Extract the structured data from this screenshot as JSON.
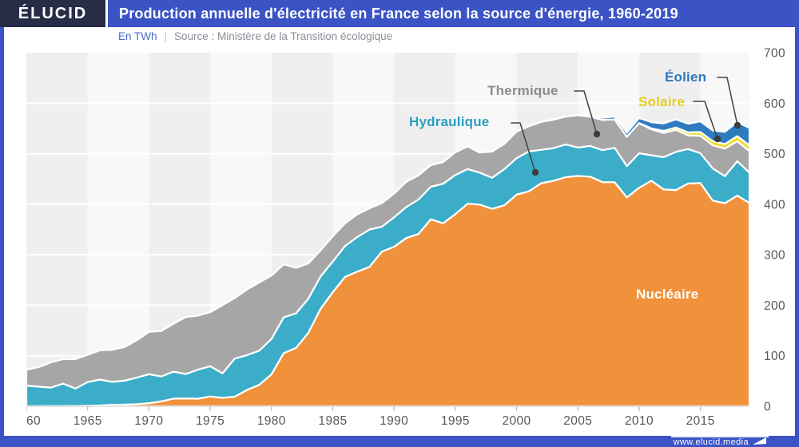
{
  "header": {
    "logo": "ÉLUCID",
    "title": "Production annuelle d'électricité en France selon la source d'énergie, 1960-2019"
  },
  "subtitle": {
    "unit": "En TWh",
    "separator": "|",
    "source": "Source : Ministère de la Transition écologique"
  },
  "footer": {
    "url": "www.elucid.media"
  },
  "colors": {
    "frame_blue": "#3B54C5",
    "logo_navy": "#272C47",
    "stripe_dark": "#EFEFF0",
    "stripe_light": "#F8F8F9",
    "gridline": "#FFFFFF",
    "axis_line": "#D2D3D5",
    "tick": "#B9BABC",
    "axis_text": "#56585D",
    "leader_line": "#474747",
    "leader_dot": "#3C3C3C"
  },
  "chart_data": {
    "type": "area",
    "stacked": true,
    "title": "Production annuelle d'électricité en France selon la source d'énergie, 1960-2019",
    "unit": "TWh",
    "ylim": [
      0,
      700
    ],
    "yticks": [
      0,
      100,
      200,
      300,
      400,
      500,
      600,
      700
    ],
    "xticks": [
      1960,
      1965,
      1970,
      1975,
      1980,
      1985,
      1990,
      1995,
      2000,
      2005,
      2010,
      2015
    ],
    "grid": true,
    "legend_position": "inline-labels",
    "years": [
      1960,
      1961,
      1962,
      1963,
      1964,
      1965,
      1966,
      1967,
      1968,
      1969,
      1970,
      1971,
      1972,
      1973,
      1974,
      1975,
      1976,
      1977,
      1978,
      1979,
      1980,
      1981,
      1982,
      1983,
      1984,
      1985,
      1986,
      1987,
      1988,
      1989,
      1990,
      1991,
      1992,
      1993,
      1994,
      1995,
      1996,
      1997,
      1998,
      1999,
      2000,
      2001,
      2002,
      2003,
      2004,
      2005,
      2006,
      2007,
      2008,
      2009,
      2010,
      2011,
      2012,
      2013,
      2014,
      2015,
      2016,
      2017,
      2018,
      2019
    ],
    "series": [
      {
        "key": "nucleaire",
        "name": "Nucléaire",
        "color": "#F0913C",
        "label_color": "#FFFFFF",
        "values": [
          0.1,
          0.2,
          0.4,
          0.5,
          0.7,
          1.0,
          1.6,
          2.8,
          3.3,
          4.3,
          6.1,
          9.8,
          15.2,
          15.6,
          15.0,
          19.4,
          16.8,
          19.0,
          32.4,
          42.4,
          63.4,
          105.2,
          115.5,
          145.2,
          192.7,
          226.0,
          256.2,
          266.5,
          276.0,
          306.1,
          315.9,
          333.1,
          341.1,
          370.2,
          362.4,
          380.5,
          401.1,
          399.3,
          390.9,
          397.8,
          419.1,
          425.6,
          441.7,
          446.2,
          453.6,
          456.0,
          454.6,
          443.9,
          443.6,
          413.6,
          432.6,
          446.6,
          429.4,
          428.1,
          441.1,
          442.0,
          407.2,
          402.0,
          417.0,
          402.5
        ]
      },
      {
        "key": "hydraulique",
        "name": "Hydraulique",
        "color": "#3BADC9",
        "label_color": "#2B9FBE",
        "values": [
          40.9,
          38.6,
          36.5,
          44.3,
          34.5,
          46.9,
          51.4,
          45.5,
          47.5,
          52.5,
          57.4,
          49.3,
          53.4,
          48.2,
          57.6,
          60.0,
          48.5,
          75.5,
          68.9,
          67.8,
          69.9,
          70.9,
          68.6,
          67.6,
          64.0,
          60.7,
          60.9,
          68.7,
          74.0,
          49.2,
          58.3,
          61.4,
          68.3,
          64.3,
          78.2,
          77.4,
          68.5,
          63.2,
          61.5,
          71.8,
          72.0,
          79.0,
          66.0,
          64.8,
          64.9,
          56.3,
          60.9,
          63.2,
          68.0,
          61.9,
          68.3,
          50.3,
          63.8,
          75.7,
          68.2,
          59.1,
          63.9,
          53.6,
          68.3,
          60.0
        ]
      },
      {
        "key": "thermique",
        "name": "Thermique",
        "color": "#A6A6A6",
        "label_color": "#8C8C8C",
        "values": [
          31.3,
          39.0,
          50.0,
          48.8,
          58.5,
          54.0,
          58.0,
          63.7,
          66.5,
          74.0,
          84.0,
          90.0,
          95.0,
          113.0,
          107.0,
          107.0,
          135.0,
          120.0,
          130.0,
          135.0,
          125.8,
          105.0,
          90.0,
          70.0,
          52.0,
          50.0,
          45.0,
          45.0,
          42.0,
          47.0,
          47.0,
          50.0,
          48.0,
          43.0,
          43.0,
          45.0,
          45.0,
          40.0,
          52.0,
          50.0,
          53.1,
          50.0,
          55.3,
          56.4,
          55.2,
          64.0,
          58.0,
          59.9,
          56.1,
          58.1,
          59.4,
          51.2,
          47.9,
          43.5,
          27.0,
          34.4,
          45.6,
          54.4,
          39.4,
          42.6
        ]
      },
      {
        "key": "solaire",
        "name": "Solaire",
        "color": "#EFDC2F",
        "label_color": "#E4CD1E",
        "values": [
          0,
          0,
          0,
          0,
          0,
          0,
          0,
          0,
          0,
          0,
          0,
          0,
          0,
          0,
          0,
          0,
          0,
          0,
          0,
          0,
          0,
          0,
          0,
          0,
          0,
          0,
          0,
          0,
          0,
          0,
          0,
          0,
          0,
          0,
          0,
          0,
          0,
          0,
          0,
          0,
          0,
          0,
          0,
          0,
          0,
          0,
          0,
          0,
          0.1,
          0.2,
          0.6,
          2.1,
          4.0,
          4.7,
          5.9,
          7.4,
          8.3,
          9.2,
          10.2,
          11.6
        ]
      },
      {
        "key": "eolien",
        "name": "Éolien",
        "color": "#2E7BC0",
        "label_color": "#2E78BE",
        "values": [
          0,
          0,
          0,
          0,
          0,
          0,
          0,
          0,
          0,
          0,
          0,
          0,
          0,
          0,
          0,
          0,
          0,
          0,
          0,
          0,
          0,
          0,
          0,
          0,
          0,
          0,
          0,
          0,
          0,
          0,
          0,
          0,
          0,
          0,
          0,
          0,
          0,
          0,
          0,
          0,
          0.1,
          0.1,
          0.3,
          0.4,
          0.6,
          1.0,
          2.2,
          4.0,
          5.7,
          7.8,
          9.9,
          12.1,
          14.9,
          15.9,
          17.1,
          21.1,
          20.9,
          24.0,
          27.8,
          34.1
        ]
      }
    ],
    "annotations": [
      {
        "series": "hydraulique",
        "points": [
          [
            607,
            88
          ],
          [
            618,
            88
          ],
          [
            637,
            150
          ]
        ]
      },
      {
        "series": "thermique",
        "points": [
          [
            686,
            48
          ],
          [
            698,
            48
          ],
          [
            714,
            102
          ]
        ]
      },
      {
        "series": "solaire",
        "points": [
          [
            835,
            61
          ],
          [
            849,
            61
          ],
          [
            865,
            108
          ]
        ]
      },
      {
        "series": "eolien",
        "points": [
          [
            865,
            31
          ],
          [
            877,
            31
          ],
          [
            890,
            91
          ]
        ]
      }
    ]
  }
}
